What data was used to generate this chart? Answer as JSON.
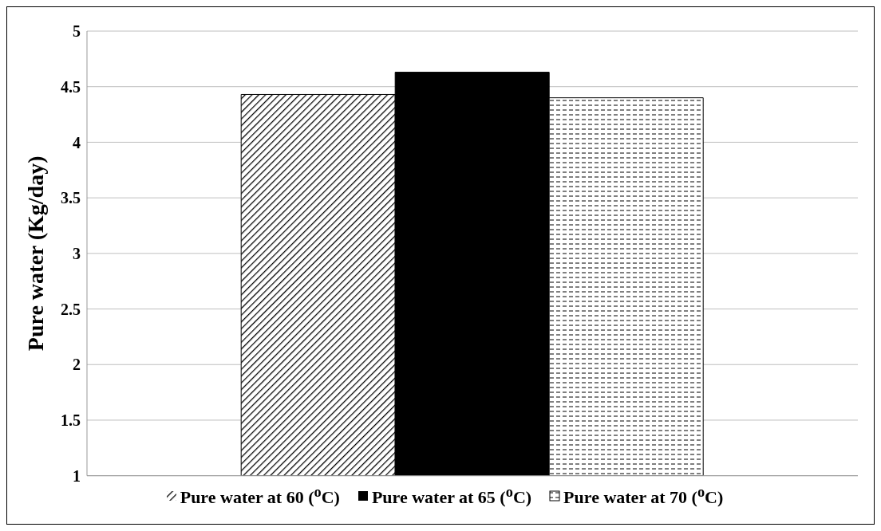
{
  "chart_data": {
    "type": "bar",
    "ylabel": "Pure water (Kg/day)",
    "categories": [
      null
    ],
    "series": [
      {
        "name": "Pure water at 60 ($^{o}$C)",
        "color": "#000000",
        "values": [
          4.43
        ]
      },
      {
        "name": "Pure water at 65 ($^{o}$C)",
        "color": "#000000",
        "values": [
          4.63
        ]
      },
      {
        "name": "Pure water at 70 ($^{o}$C)",
        "color": "#000000",
        "values": [
          4.4
        ]
      }
    ],
    "ylim": [
      1,
      5
    ],
    "yticks": [
      1,
      1.5,
      2,
      2.5,
      3,
      3.5,
      4,
      4.5,
      5
    ],
    "grid": "y",
    "legend": "bottom"
  }
}
